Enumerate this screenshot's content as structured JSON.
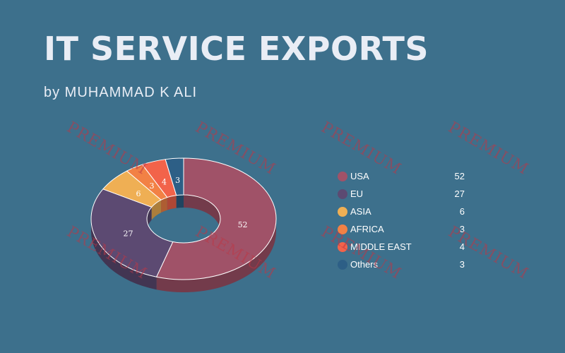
{
  "header": {
    "title": "IT SERVICE EXPORTS",
    "subtitle": "by MUHAMMAD K ALI"
  },
  "watermark_text": "PREMIUM",
  "chart_data": {
    "type": "pie",
    "style": "3d-donut",
    "title": "IT SERVICE EXPORTS",
    "categories": [
      "USA",
      "EU",
      "ASIA",
      "AFRICA",
      "MIDDLE EAST",
      "Others"
    ],
    "values": [
      52,
      27,
      6,
      3,
      4,
      3
    ],
    "colors": [
      "#a05268",
      "#5c4a72",
      "#efaf54",
      "#f28145",
      "#f2634a",
      "#2d5f86"
    ],
    "data_labels": [
      "52",
      "27",
      "6",
      "3",
      "4",
      "3"
    ],
    "legend_position": "right"
  },
  "legend": {
    "items": [
      {
        "label": "USA",
        "value": "52",
        "color": "#a05268"
      },
      {
        "label": "EU",
        "value": "27",
        "color": "#5c4a72"
      },
      {
        "label": "ASIA",
        "value": "6",
        "color": "#efaf54"
      },
      {
        "label": "AFRICA",
        "value": "3",
        "color": "#f28145"
      },
      {
        "label": "MIDDLE EAST",
        "value": "4",
        "color": "#f2634a"
      },
      {
        "label": "Others",
        "value": "3",
        "color": "#2d5f86"
      }
    ]
  }
}
